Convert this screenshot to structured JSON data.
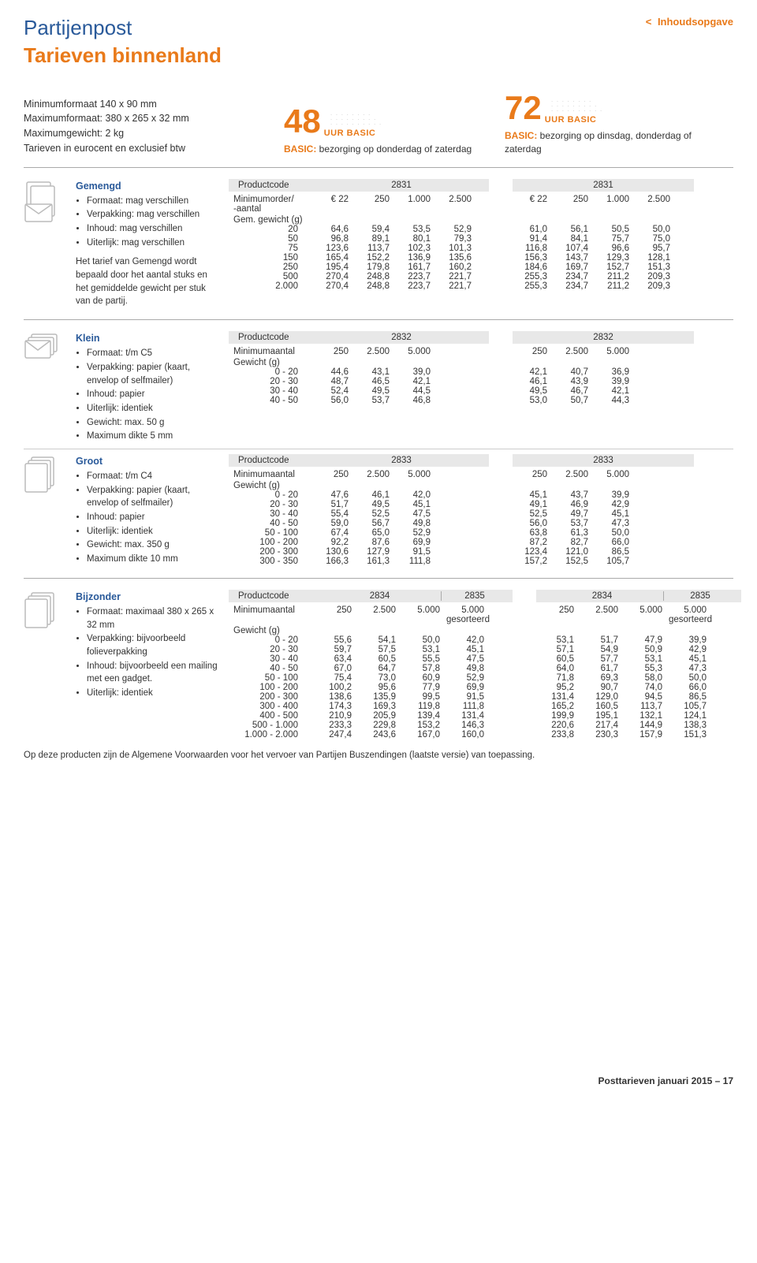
{
  "colors": {
    "blue": "#2a5a9a",
    "orange": "#e97a1a",
    "grey_bg": "#e8e8e8",
    "icon_stroke": "#bbbbbb"
  },
  "toc": {
    "label": "Inhoudsopgave",
    "chev": "<"
  },
  "title": {
    "line1": "Partijenpost",
    "line2": "Tarieven binnenland"
  },
  "specs": [
    "Minimumformaat 140 x 90 mm",
    "Maximumformaat: 380 x 265 x 32 mm",
    "Maximumgewicht: 2 kg",
    "Tarieven in eurocent en exclusief btw"
  ],
  "basics": [
    {
      "hours": "48",
      "label": "UUR BASIC",
      "caption_bold": "BASIC:",
      "caption": " bezorging op donderdag of zaterdag"
    },
    {
      "hours": "72",
      "label": "UUR BASIC",
      "caption_bold": "BASIC:",
      "caption": " bezorging op dinsdag, donderdag of zaterdag"
    }
  ],
  "gemengd": {
    "name": "Gemengd",
    "bullets": [
      "Formaat: mag verschillen",
      "Verpakking: mag verschillen",
      "Inhoud: mag verschillen",
      "Uiterlijk: mag verschillen"
    ],
    "tail": "Het tarief van Gemengd wordt bepaald door het aantal stuks en het gemiddelde gewicht per stuk van de partij.",
    "pcode_label": "Productcode",
    "pcode_l": "2831",
    "pcode_r": "2831",
    "min_label": "Minimumorder/\n-aantal",
    "gew_label": "Gem. gewicht (g)",
    "hdr_l": [
      "€ 22",
      "250",
      "1.000",
      "2.500"
    ],
    "hdr_r": [
      "€ 22",
      "250",
      "1.000",
      "2.500"
    ],
    "rows_w": [
      "20",
      "50",
      "75",
      "150",
      "250",
      "500",
      "2.000"
    ],
    "rows_l": [
      [
        "64,6",
        "59,4",
        "53,5",
        "52,9"
      ],
      [
        "96,8",
        "89,1",
        "80,1",
        "79,3"
      ],
      [
        "123,6",
        "113,7",
        "102,3",
        "101,3"
      ],
      [
        "165,4",
        "152,2",
        "136,9",
        "135,6"
      ],
      [
        "195,4",
        "179,8",
        "161,7",
        "160,2"
      ],
      [
        "270,4",
        "248,8",
        "223,7",
        "221,7"
      ],
      [
        "270,4",
        "248,8",
        "223,7",
        "221,7"
      ]
    ],
    "rows_r": [
      [
        "61,0",
        "56,1",
        "50,5",
        "50,0"
      ],
      [
        "91,4",
        "84,1",
        "75,7",
        "75,0"
      ],
      [
        "116,8",
        "107,4",
        "96,6",
        "95,7"
      ],
      [
        "156,3",
        "143,7",
        "129,3",
        "128,1"
      ],
      [
        "184,6",
        "169,7",
        "152,7",
        "151,3"
      ],
      [
        "255,3",
        "234,7",
        "211,2",
        "209,3"
      ],
      [
        "255,3",
        "234,7",
        "211,2",
        "209,3"
      ]
    ]
  },
  "klein": {
    "name": "Klein",
    "bullets": [
      "Formaat: t/m C5",
      "Verpakking: papier (kaart, envelop of selfmailer)",
      "Inhoud: papier",
      "Uiterlijk: identiek",
      "Gewicht: max. 50 g",
      "Maximum dikte 5 mm"
    ],
    "pcode_l": "2832",
    "pcode_r": "2832",
    "min_label": "Minimumaantal",
    "gew_label": "Gewicht (g)",
    "hdr_l": [
      "250",
      "2.500",
      "5.000"
    ],
    "hdr_r": [
      "250",
      "2.500",
      "5.000"
    ],
    "rows_w": [
      "0 - 20",
      "20 - 30",
      "30 - 40",
      "40 - 50"
    ],
    "rows_l": [
      [
        "44,6",
        "43,1",
        "39,0"
      ],
      [
        "48,7",
        "46,5",
        "42,1"
      ],
      [
        "52,4",
        "49,5",
        "44,5"
      ],
      [
        "56,0",
        "53,7",
        "46,8"
      ]
    ],
    "rows_r": [
      [
        "42,1",
        "40,7",
        "36,9"
      ],
      [
        "46,1",
        "43,9",
        "39,9"
      ],
      [
        "49,5",
        "46,7",
        "42,1"
      ],
      [
        "53,0",
        "50,7",
        "44,3"
      ]
    ]
  },
  "groot": {
    "name": "Groot",
    "bullets": [
      "Formaat: t/m C4",
      "Verpakking: papier (kaart, envelop of selfmailer)",
      "Inhoud: papier",
      "Uiterlijk: identiek",
      "Gewicht: max. 350 g",
      "Maximum dikte 10 mm"
    ],
    "pcode_l": "2833",
    "pcode_r": "2833",
    "min_label": "Minimumaantal",
    "gew_label": "Gewicht (g)",
    "hdr_l": [
      "250",
      "2.500",
      "5.000"
    ],
    "hdr_r": [
      "250",
      "2.500",
      "5.000"
    ],
    "rows_w": [
      "0 - 20",
      "20 - 30",
      "30 - 40",
      "40 - 50",
      "50 - 100",
      "100 - 200",
      "200 - 300",
      "300 - 350"
    ],
    "rows_l": [
      [
        "47,6",
        "46,1",
        "42,0"
      ],
      [
        "51,7",
        "49,5",
        "45,1"
      ],
      [
        "55,4",
        "52,5",
        "47,5"
      ],
      [
        "59,0",
        "56,7",
        "49,8"
      ],
      [
        "67,4",
        "65,0",
        "52,9"
      ],
      [
        "92,2",
        "87,6",
        "69,9"
      ],
      [
        "130,6",
        "127,9",
        "91,5"
      ],
      [
        "166,3",
        "161,3",
        "111,8"
      ]
    ],
    "rows_r": [
      [
        "45,1",
        "43,7",
        "39,9"
      ],
      [
        "49,1",
        "46,9",
        "42,9"
      ],
      [
        "52,5",
        "49,7",
        "45,1"
      ],
      [
        "56,0",
        "53,7",
        "47,3"
      ],
      [
        "63,8",
        "61,3",
        "50,0"
      ],
      [
        "87,2",
        "82,7",
        "66,0"
      ],
      [
        "123,4",
        "121,0",
        "86,5"
      ],
      [
        "157,2",
        "152,5",
        "105,7"
      ]
    ]
  },
  "bijzonder": {
    "name": "Bijzonder",
    "bullets": [
      "Formaat: maximaal 380 x 265 x 32 mm",
      "Verpakking: bijvoorbeeld folieverpakking",
      "Inhoud: bijvoorbeeld een mailing met een gadget.",
      "Uiterlijk: identiek"
    ],
    "pcodes_l": [
      "2834",
      "2835"
    ],
    "pcodes_r": [
      "2834",
      "2835"
    ],
    "min_label": "Minimumaantal",
    "gew_label": "Gewicht (g)",
    "hdr_l": [
      "250",
      "2.500",
      "5.000",
      "5.000 gesorteerd"
    ],
    "hdr_r": [
      "250",
      "2.500",
      "5.000",
      "5.000 gesorteerd"
    ],
    "rows_w": [
      "0 - 20",
      "20 - 30",
      "30 - 40",
      "40 - 50",
      "50 - 100",
      "100 - 200",
      "200 - 300",
      "300 - 400",
      "400 - 500",
      "500 - 1.000",
      "1.000 - 2.000"
    ],
    "rows_l": [
      [
        "55,6",
        "54,1",
        "50,0",
        "42,0"
      ],
      [
        "59,7",
        "57,5",
        "53,1",
        "45,1"
      ],
      [
        "63,4",
        "60,5",
        "55,5",
        "47,5"
      ],
      [
        "67,0",
        "64,7",
        "57,8",
        "49,8"
      ],
      [
        "75,4",
        "73,0",
        "60,9",
        "52,9"
      ],
      [
        "100,2",
        "95,6",
        "77,9",
        "69,9"
      ],
      [
        "138,6",
        "135,9",
        "99,5",
        "91,5"
      ],
      [
        "174,3",
        "169,3",
        "119,8",
        "111,8"
      ],
      [
        "210,9",
        "205,9",
        "139,4",
        "131,4"
      ],
      [
        "233,3",
        "229,8",
        "153,2",
        "146,3"
      ],
      [
        "247,4",
        "243,6",
        "167,0",
        "160,0"
      ]
    ],
    "rows_r": [
      [
        "53,1",
        "51,7",
        "47,9",
        "39,9"
      ],
      [
        "57,1",
        "54,9",
        "50,9",
        "42,9"
      ],
      [
        "60,5",
        "57,7",
        "53,1",
        "45,1"
      ],
      [
        "64,0",
        "61,7",
        "55,3",
        "47,3"
      ],
      [
        "71,8",
        "69,3",
        "58,0",
        "50,0"
      ],
      [
        "95,2",
        "90,7",
        "74,0",
        "66,0"
      ],
      [
        "131,4",
        "129,0",
        "94,5",
        "86,5"
      ],
      [
        "165,2",
        "160,5",
        "113,7",
        "105,7"
      ],
      [
        "199,9",
        "195,1",
        "132,1",
        "124,1"
      ],
      [
        "220,6",
        "217,4",
        "144,9",
        "138,3"
      ],
      [
        "233,8",
        "230,3",
        "157,9",
        "151,3"
      ]
    ]
  },
  "footnote": "Op deze producten zijn de Algemene Voorwaarden voor het vervoer van Partijen Buszendingen (laatste versie) van toepassing.",
  "footer": {
    "label": "Posttarieven januari 2015 – ",
    "page": "17"
  },
  "productcode_label": "Productcode"
}
